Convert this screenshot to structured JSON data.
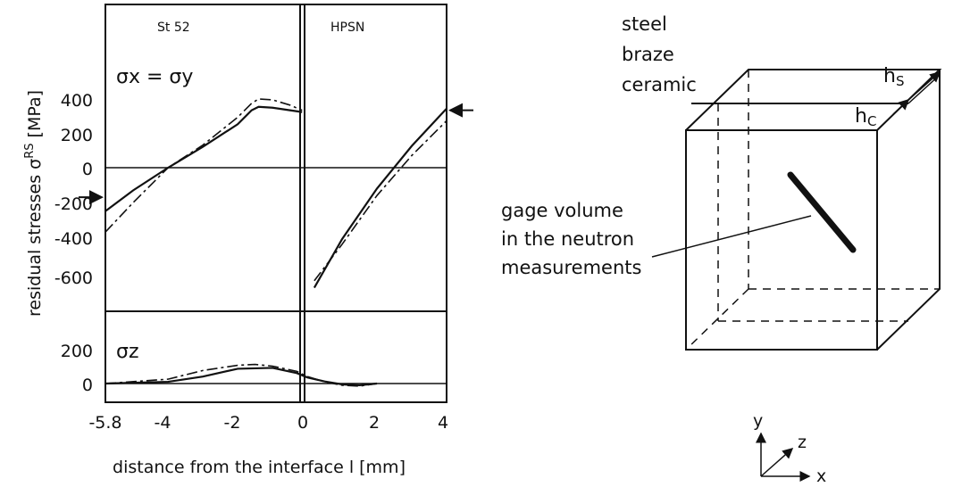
{
  "chart_data": [
    {
      "type": "line",
      "panel": "top",
      "xlabel": "distance from the interface  l [mm]",
      "ylabel": "residual stresses σRS [MPa]",
      "ylabel_main": "residual stresses σ",
      "ylabel_sup": "RS",
      "ylabel_unit": " [MPa]",
      "component_label": "σx = σy",
      "region_left": "St 52",
      "region_right": "HPSN",
      "xticks": [
        "-5.8",
        "-4",
        "-2",
        "0",
        "2",
        "4"
      ],
      "yticks": [
        "400",
        "200",
        "0",
        "-200",
        "-400",
        "-600"
      ],
      "xlim": [
        -5.8,
        4
      ],
      "ylim": [
        -650,
        450
      ],
      "series": [
        {
          "style": "solid",
          "x": [
            -5.8,
            -5,
            -4,
            -3,
            -2,
            -1.6,
            -1.4,
            -1,
            -0.5,
            -0.15,
            0.2,
            1,
            2,
            3,
            4
          ],
          "y": [
            -250,
            -130,
            0,
            120,
            250,
            330,
            350,
            345,
            330,
            320,
            -690,
            -410,
            -120,
            125,
            340
          ]
        },
        {
          "style": "dash-dot",
          "x": [
            -5.8,
            -5,
            -4,
            -3,
            -2,
            -1.6,
            -1.4,
            -1,
            -0.5,
            -0.15,
            0.2,
            1,
            2,
            3,
            4
          ],
          "y": [
            -370,
            -200,
            0,
            130,
            290,
            370,
            395,
            390,
            360,
            330,
            -650,
            -440,
            -160,
            70,
            270
          ]
        }
      ],
      "arrows": [
        {
          "x": -5.8,
          "y": -170,
          "direction": "right"
        },
        {
          "x": 4,
          "y": 330,
          "direction": "left"
        }
      ]
    },
    {
      "type": "line",
      "panel": "bottom",
      "component_label": "σz",
      "yticks": [
        "200",
        "0"
      ],
      "xlim": [
        -5.8,
        4
      ],
      "series": [
        {
          "style": "solid",
          "x": [
            -5.8,
            -4,
            -3,
            -2,
            -1,
            -0.3,
            0,
            0.5,
            1,
            1.5,
            2
          ],
          "y": [
            0,
            10,
            40,
            85,
            90,
            60,
            35,
            12,
            -5,
            -10,
            0
          ]
        },
        {
          "style": "dash-dot",
          "x": [
            -5.8,
            -4,
            -3,
            -2,
            -1.5,
            -1,
            -0.3,
            0,
            0.5,
            1,
            1.5,
            2
          ],
          "y": [
            0,
            25,
            75,
            105,
            110,
            100,
            70,
            40,
            10,
            -10,
            -15,
            0
          ]
        }
      ]
    }
  ],
  "diagram": {
    "layer_labels": [
      "steel",
      "braze",
      "ceramic"
    ],
    "thickness_labels": {
      "hs_main": "h",
      "hs_sub": "S",
      "hc_main": "h",
      "hc_sub": "C"
    },
    "gage_label_lines": [
      "gage volume",
      "in the neutron",
      "measurements"
    ],
    "axes": {
      "x": "x",
      "y": "y",
      "z": "z"
    }
  }
}
